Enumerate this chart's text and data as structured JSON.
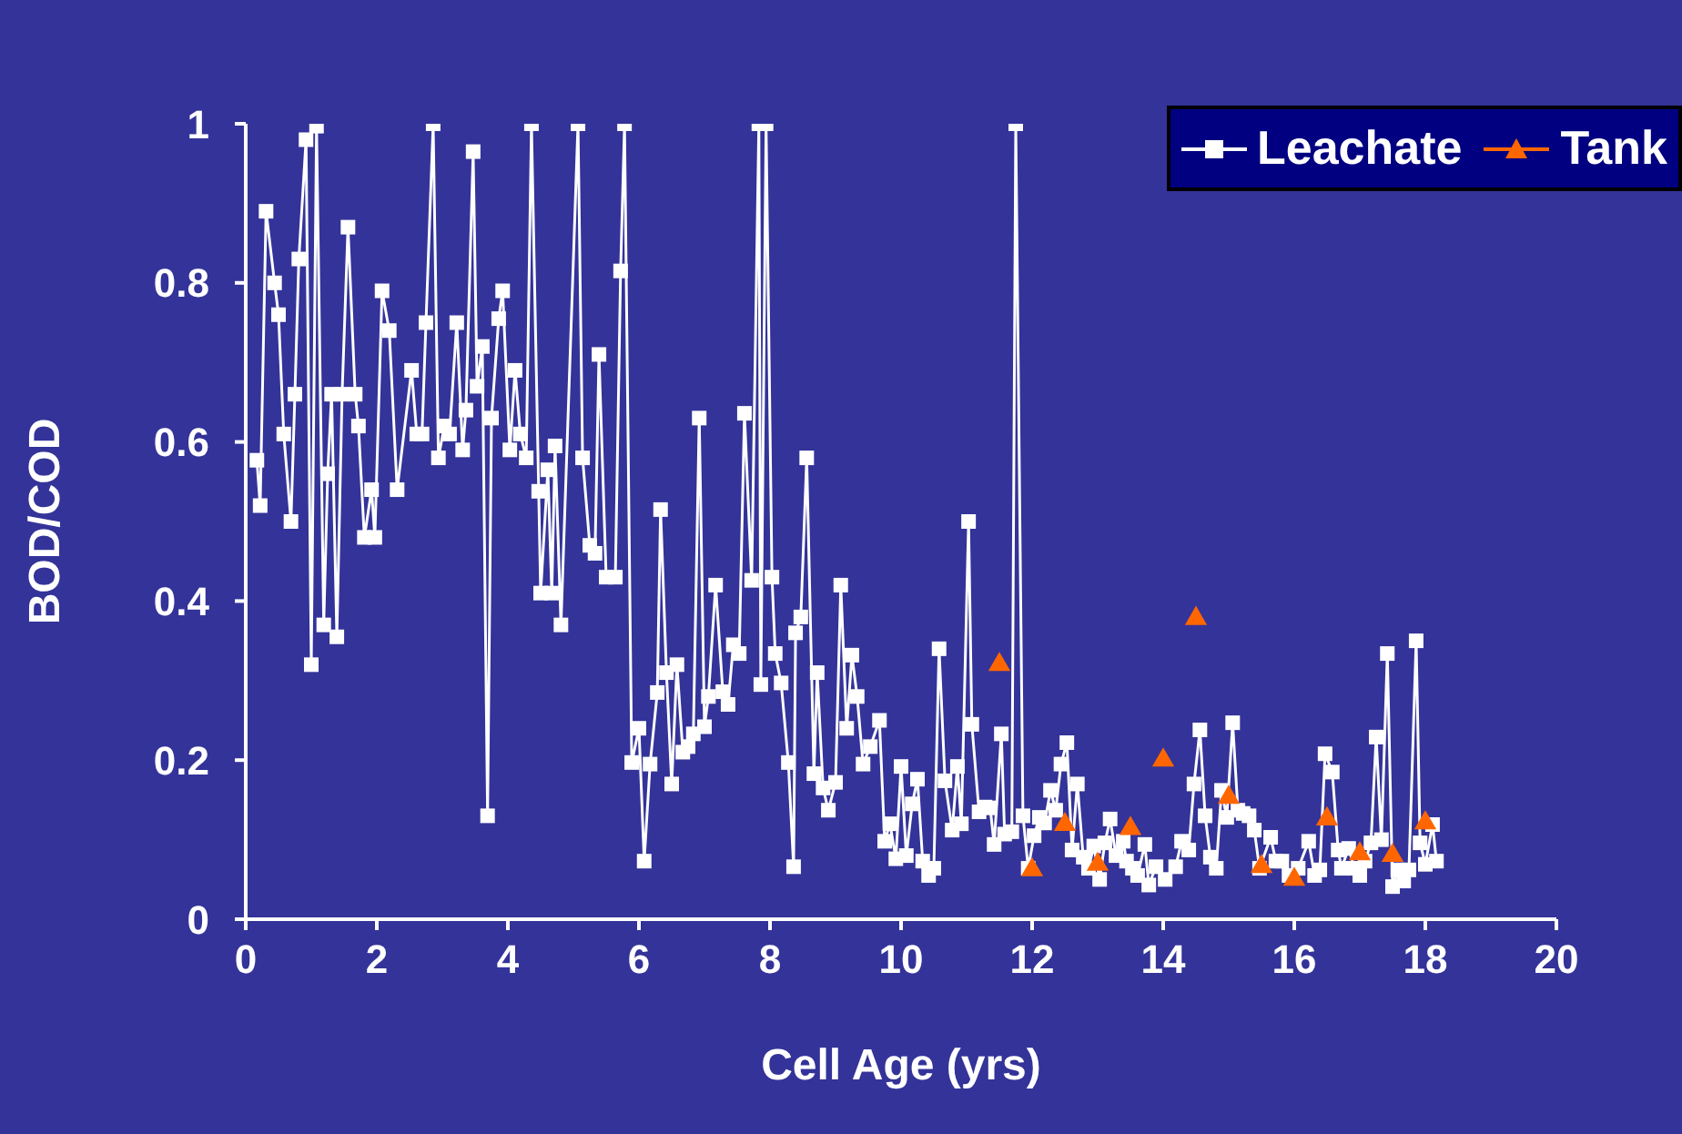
{
  "chart_data": {
    "type": "line",
    "xlabel": "Cell Age (yrs)",
    "ylabel": "BOD/COD",
    "xlim": [
      0,
      20
    ],
    "ylim": [
      0,
      1
    ],
    "xticks": [
      0,
      2,
      4,
      6,
      8,
      10,
      12,
      14,
      16,
      18,
      20
    ],
    "yticks": [
      0,
      0.2,
      0.4,
      0.6,
      0.8,
      1
    ],
    "grid": false,
    "legend": "top right",
    "series": [
      {
        "name": "Leachate",
        "marker": "square",
        "color": "#ffffff",
        "x": [
          0.17,
          0.22,
          0.31,
          0.44,
          0.5,
          0.58,
          0.69,
          0.75,
          0.81,
          0.92,
          1.0,
          1.08,
          1.19,
          1.25,
          1.31,
          1.39,
          1.47,
          1.56,
          1.67,
          1.72,
          1.81,
          1.92,
          1.97,
          2.08,
          2.19,
          2.31,
          2.53,
          2.61,
          2.69,
          2.75,
          2.86,
          2.94,
          3.03,
          3.11,
          3.22,
          3.31,
          3.36,
          3.47,
          3.53,
          3.61,
          3.69,
          3.75,
          3.86,
          3.92,
          4.03,
          4.11,
          4.19,
          4.28,
          4.36,
          4.47,
          4.5,
          4.61,
          4.67,
          4.72,
          4.81,
          5.07,
          5.14,
          5.25,
          5.33,
          5.39,
          5.5,
          5.64,
          5.72,
          5.78,
          5.89,
          6.0,
          6.08,
          6.17,
          6.28,
          6.33,
          6.42,
          6.5,
          6.58,
          6.67,
          6.75,
          6.83,
          6.92,
          7.0,
          7.06,
          7.17,
          7.28,
          7.36,
          7.44,
          7.53,
          7.61,
          7.72,
          7.83,
          7.86,
          7.94,
          8.03,
          8.08,
          8.17,
          8.28,
          8.36,
          8.39,
          8.47,
          8.56,
          8.67,
          8.72,
          8.81,
          8.89,
          9.0,
          9.08,
          9.17,
          9.25,
          9.33,
          9.42,
          9.53,
          9.67,
          9.75,
          9.83,
          9.92,
          10.0,
          10.08,
          10.17,
          10.25,
          10.33,
          10.42,
          10.5,
          10.58,
          10.67,
          10.78,
          10.86,
          10.92,
          11.03,
          11.08,
          11.19,
          11.28,
          11.36,
          11.42,
          11.53,
          11.58,
          11.69,
          11.75,
          11.86,
          11.94,
          12.03,
          12.11,
          12.19,
          12.28,
          12.36,
          12.44,
          12.53,
          12.61,
          12.69,
          12.78,
          12.86,
          12.94,
          13.03,
          13.11,
          13.19,
          13.28,
          13.39,
          13.44,
          13.53,
          13.61,
          13.72,
          13.78,
          13.89,
          14.03,
          14.19,
          14.28,
          14.39,
          14.47,
          14.56,
          14.64,
          14.72,
          14.81,
          14.89,
          14.97,
          15.06,
          15.14,
          15.22,
          15.31,
          15.39,
          15.47,
          15.64,
          15.72,
          15.81,
          15.92,
          16.06,
          16.22,
          16.31,
          16.39,
          16.47,
          16.58,
          16.67,
          16.72,
          16.83,
          16.92,
          17.0,
          17.08,
          17.17,
          17.25,
          17.33,
          17.42,
          17.5,
          17.58,
          17.67,
          17.75,
          17.86,
          17.92,
          18.0,
          18.11,
          18.17
        ],
        "values": [
          0.577,
          0.52,
          0.89,
          0.8,
          0.76,
          0.61,
          0.5,
          0.66,
          0.83,
          0.98,
          0.32,
          0.997,
          0.37,
          0.56,
          0.66,
          0.355,
          0.66,
          0.87,
          0.66,
          0.62,
          0.48,
          0.54,
          0.48,
          0.79,
          0.74,
          0.54,
          0.69,
          0.61,
          0.61,
          0.75,
          1,
          0.58,
          0.62,
          0.61,
          0.75,
          0.59,
          0.64,
          0.965,
          0.67,
          0.72,
          0.13,
          0.63,
          0.755,
          0.79,
          0.59,
          0.69,
          0.61,
          0.58,
          1,
          0.538,
          0.41,
          0.565,
          0.41,
          0.595,
          0.37,
          1,
          0.58,
          0.47,
          0.46,
          0.71,
          0.43,
          0.43,
          0.815,
          1,
          0.197,
          0.24,
          0.073,
          0.195,
          0.285,
          0.515,
          0.31,
          0.17,
          0.32,
          0.21,
          0.217,
          0.233,
          0.63,
          0.242,
          0.28,
          0.42,
          0.286,
          0.27,
          0.345,
          0.334,
          0.636,
          0.426,
          1,
          0.295,
          1,
          0.43,
          0.334,
          0.297,
          0.197,
          0.066,
          0.36,
          0.38,
          0.58,
          0.183,
          0.31,
          0.165,
          0.137,
          0.172,
          0.42,
          0.24,
          0.332,
          0.28,
          0.195,
          0.217,
          0.25,
          0.098,
          0.12,
          0.076,
          0.192,
          0.08,
          0.145,
          0.176,
          0.073,
          0.055,
          0.064,
          0.34,
          0.174,
          0.112,
          0.192,
          0.12,
          0.5,
          0.245,
          0.135,
          0.141,
          0.14,
          0.094,
          0.233,
          0.107,
          0.11,
          1,
          0.13,
          0.064,
          0.105,
          0.128,
          0.121,
          0.162,
          0.137,
          0.195,
          0.222,
          0.087,
          0.17,
          0.078,
          0.064,
          0.092,
          0.05,
          0.096,
          0.126,
          0.08,
          0.098,
          0.073,
          0.064,
          0.055,
          0.094,
          0.043,
          0.066,
          0.05,
          0.066,
          0.098,
          0.087,
          0.17,
          0.238,
          0.13,
          0.078,
          0.064,
          0.162,
          0.128,
          0.247,
          0.137,
          0.133,
          0.13,
          0.112,
          0.064,
          0.103,
          0.073,
          0.073,
          0.055,
          0.064,
          0.098,
          0.055,
          0.062,
          0.208,
          0.185,
          0.087,
          0.064,
          0.089,
          0.064,
          0.055,
          0.073,
          0.096,
          0.229,
          0.1,
          0.334,
          0.041,
          0.062,
          0.048,
          0.062,
          0.35,
          0.096,
          0.069,
          0.119,
          0.073
        ]
      },
      {
        "name": "Tank",
        "type": "scatter",
        "marker": "triangle",
        "color": "#ff6600",
        "x": [
          11.5,
          12,
          12.5,
          13,
          13.5,
          14,
          14.5,
          15,
          15.5,
          16,
          16.5,
          17,
          17.5,
          18
        ],
        "values": [
          0.32,
          0.062,
          0.119,
          0.069,
          0.114,
          0.2,
          0.378,
          0.153,
          0.066,
          0.05,
          0.126,
          0.082,
          0.08,
          0.121
        ]
      }
    ]
  }
}
